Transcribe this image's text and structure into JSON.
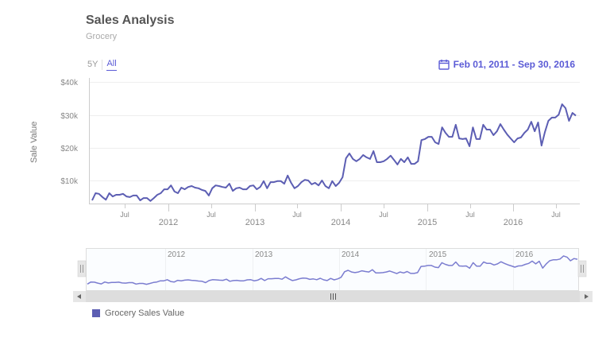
{
  "header": {
    "title": "Sales Analysis",
    "subtitle": "Grocery"
  },
  "range_selector": {
    "buttons": [
      {
        "label": "5Y",
        "active": false
      },
      {
        "label": "All",
        "active": true
      }
    ]
  },
  "date_range": {
    "icon": "calendar-icon",
    "label": "Feb 01, 2011 - Sep 30, 2016"
  },
  "y_axis": {
    "title": "Sale Value",
    "ticks": [
      "$10k",
      "$20k",
      "$30k",
      "$40k"
    ]
  },
  "x_axis": {
    "ticks": [
      "Jul",
      "2012",
      "Jul",
      "2013",
      "Jul",
      "2014",
      "Jul",
      "2015",
      "Jul",
      "2016",
      "Jul"
    ]
  },
  "navigator": {
    "labels": [
      "2012",
      "2013",
      "2014",
      "2015",
      "2016"
    ],
    "left_handle_icon": "grip-handle-icon",
    "right_handle_icon": "grip-handle-icon",
    "scroll_left_icon": "arrow-left-icon",
    "scroll_right_icon": "arrow-right-icon",
    "scroll_thumb_icon": "grip-icon"
  },
  "legend": {
    "items": [
      {
        "label": "Grocery Sales Value",
        "color": "#5c5eb3"
      }
    ]
  },
  "colors": {
    "series": "#5c5eb3",
    "accent": "#5b5bd6",
    "grid": "#eeeeee",
    "axis": "#cccccc"
  },
  "chart_data": {
    "type": "line",
    "title": "Sales Analysis",
    "subtitle": "Grocery",
    "xlabel": "",
    "ylabel": "Sale Value",
    "ylim": [
      0,
      40000
    ],
    "x_range": [
      "2011-02-01",
      "2016-09-30"
    ],
    "grid": true,
    "legend_position": "bottom-left",
    "series": [
      {
        "name": "Grocery Sales Value",
        "x_start": "2011-02",
        "interval": "half-month",
        "values": [
          3900,
          6100,
          5900,
          4900,
          4100,
          6100,
          5100,
          5600,
          5600,
          5900,
          5100,
          4900,
          5400,
          5400,
          3900,
          4600,
          4600,
          3700,
          4600,
          5600,
          6100,
          7300,
          7300,
          8500,
          6600,
          6100,
          7800,
          7300,
          8000,
          8300,
          7800,
          7600,
          7100,
          6800,
          5400,
          7600,
          8500,
          8300,
          8000,
          7800,
          9000,
          6800,
          7600,
          7800,
          7300,
          7300,
          8300,
          8500,
          7300,
          8000,
          9800,
          7600,
          9500,
          9500,
          9800,
          9800,
          9000,
          11500,
          9300,
          7600,
          8300,
          9500,
          10200,
          10000,
          8800,
          9300,
          8500,
          10000,
          8300,
          7600,
          9800,
          8300,
          9300,
          11000,
          16800,
          18300,
          16600,
          15900,
          16600,
          17800,
          17100,
          16600,
          19000,
          15600,
          15600,
          15900,
          16600,
          17600,
          16300,
          14900,
          16600,
          15600,
          17100,
          15100,
          15100,
          15900,
          22400,
          22700,
          23400,
          23400,
          21700,
          21200,
          26300,
          24600,
          23400,
          23400,
          27100,
          22900,
          22700,
          22900,
          20500,
          26300,
          22700,
          22700,
          27100,
          25600,
          25600,
          23900,
          25100,
          27300,
          25600,
          24100,
          22900,
          21700,
          22900,
          23200,
          24600,
          25600,
          28000,
          25100,
          27800,
          20700,
          24900,
          28300,
          29300,
          29300,
          30200,
          33400,
          32200,
          28300,
          30700,
          29900
        ]
      }
    ]
  }
}
